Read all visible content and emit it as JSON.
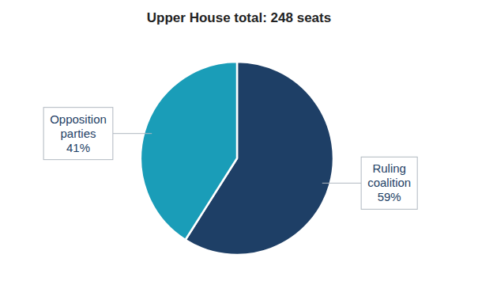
{
  "chart_data": {
    "type": "pie",
    "title": "Upper House total: 248 seats",
    "values": [
      59,
      41
    ],
    "value_labels": [
      "Ruling\ncoalition\n59%",
      "Opposition\nparties\n41%"
    ],
    "colors": [
      "#1e3f66",
      "#1a9db8"
    ],
    "data_labels": true
  }
}
